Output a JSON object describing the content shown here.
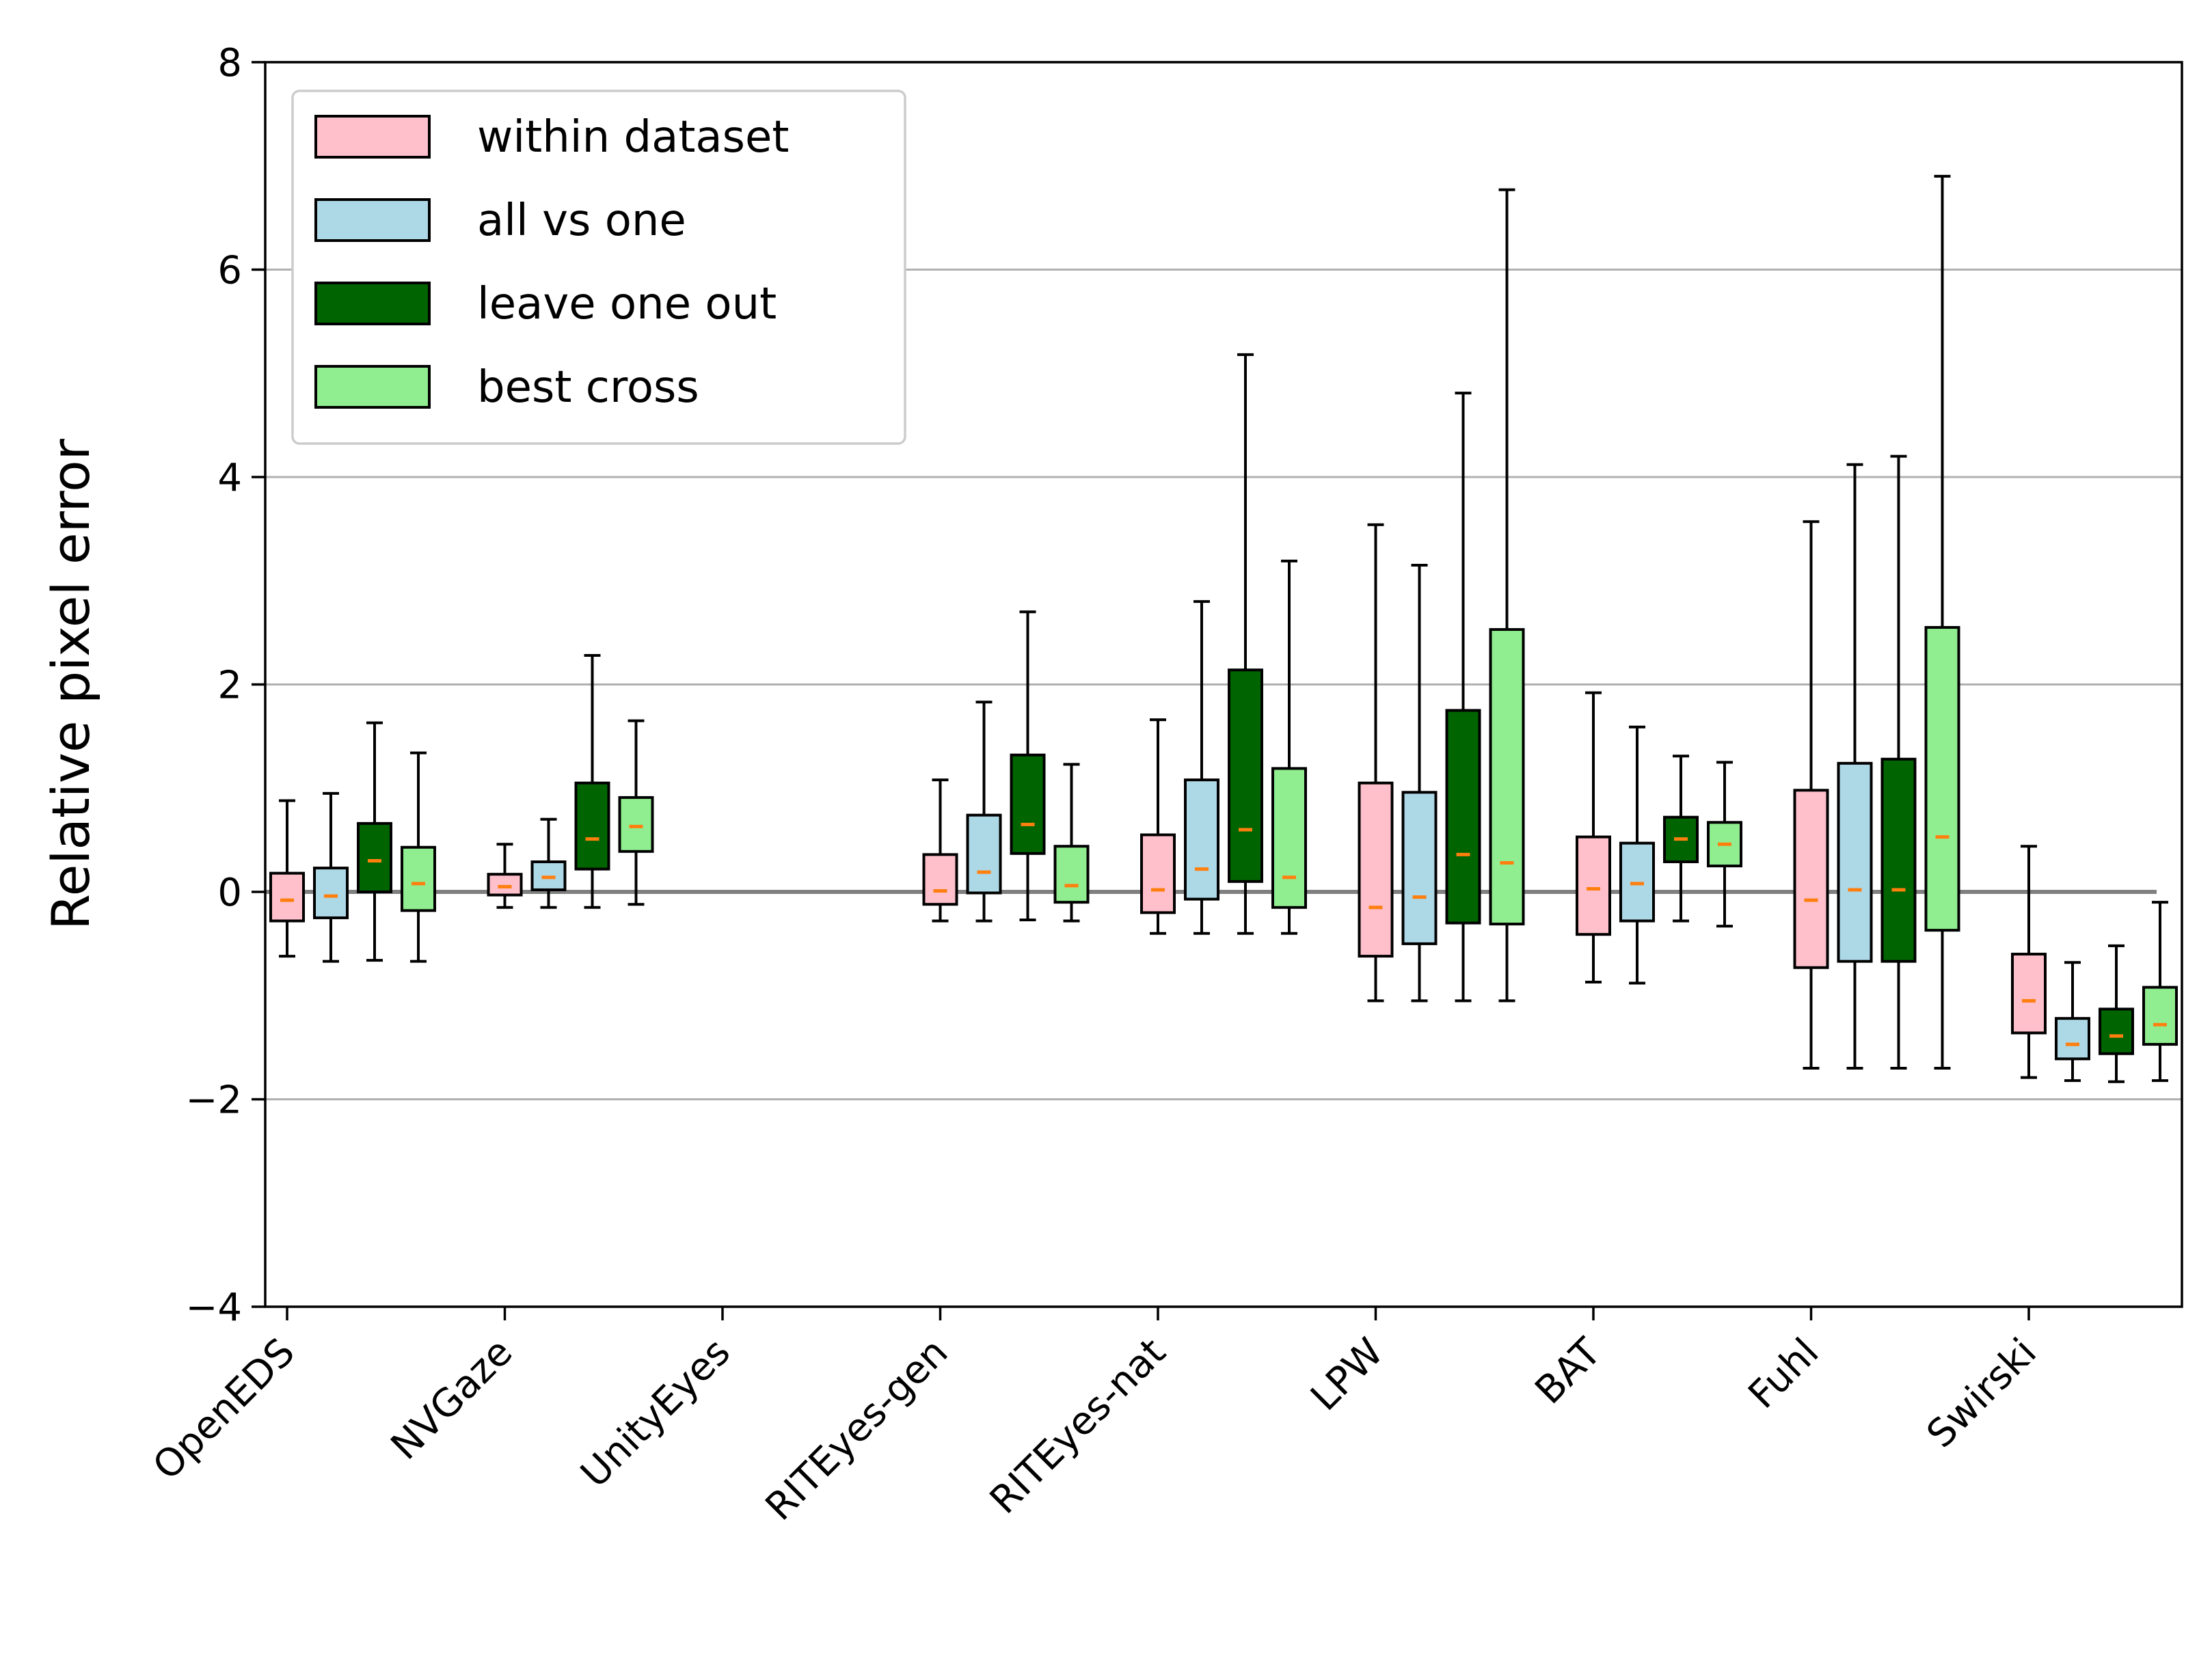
{
  "chart_data": {
    "type": "boxplot",
    "title": "",
    "xlabel": "",
    "ylabel": "Relative pixel error",
    "ylim": [
      -4,
      8
    ],
    "yticks": [
      -4,
      -2,
      0,
      2,
      4,
      6,
      8
    ],
    "ytick_labels": [
      "−4",
      "−2",
      "0",
      "2",
      "4",
      "6",
      "8"
    ],
    "grid": "horizontal",
    "reference_line": 0,
    "legend_position": "top-left",
    "categories": [
      "OpenEDS",
      "NVGaze",
      "UnityEyes",
      "RITEyes-gen",
      "RITEyes-nat",
      "LPW",
      "BAT",
      "Fuhl",
      "Swirski"
    ],
    "colors": {
      "median": "#ff7f0e",
      "edge": "#000000",
      "grid": "#b0b0b0",
      "zero_line": "#808080"
    },
    "series": [
      {
        "name": "within dataset",
        "color": "#ffc0cb",
        "boxes": [
          {
            "min": -0.62,
            "q1": -0.28,
            "median": -0.08,
            "q3": 0.18,
            "max": 0.88
          },
          {
            "min": -0.15,
            "q1": -0.03,
            "median": 0.05,
            "q3": 0.17,
            "max": 0.46
          },
          null,
          {
            "min": -0.28,
            "q1": -0.12,
            "median": 0.01,
            "q3": 0.36,
            "max": 1.08
          },
          {
            "min": -0.4,
            "q1": -0.2,
            "median": 0.02,
            "q3": 0.55,
            "max": 1.66
          },
          {
            "min": -1.05,
            "q1": -0.62,
            "median": -0.15,
            "q3": 1.05,
            "max": 3.54
          },
          {
            "min": -0.87,
            "q1": -0.41,
            "median": 0.03,
            "q3": 0.53,
            "max": 1.92
          },
          {
            "min": -1.7,
            "q1": -0.73,
            "median": -0.08,
            "q3": 0.98,
            "max": 3.57
          },
          {
            "min": -1.79,
            "q1": -1.36,
            "median": -1.05,
            "q3": -0.6,
            "max": 0.44
          }
        ]
      },
      {
        "name": "all vs one",
        "color": "#add8e6",
        "boxes": [
          {
            "min": -0.67,
            "q1": -0.25,
            "median": -0.04,
            "q3": 0.23,
            "max": 0.95
          },
          {
            "min": -0.15,
            "q1": 0.02,
            "median": 0.14,
            "q3": 0.29,
            "max": 0.7
          },
          null,
          {
            "min": -0.28,
            "q1": -0.01,
            "median": 0.19,
            "q3": 0.74,
            "max": 1.83
          },
          {
            "min": -0.4,
            "q1": -0.07,
            "median": 0.22,
            "q3": 1.08,
            "max": 2.8
          },
          {
            "min": -1.05,
            "q1": -0.5,
            "median": -0.05,
            "q3": 0.96,
            "max": 3.15
          },
          {
            "min": -0.88,
            "q1": -0.28,
            "median": 0.08,
            "q3": 0.47,
            "max": 1.59
          },
          {
            "min": -1.7,
            "q1": -0.67,
            "median": 0.02,
            "q3": 1.24,
            "max": 4.12
          },
          {
            "min": -1.82,
            "q1": -1.61,
            "median": -1.47,
            "q3": -1.22,
            "max": -0.68
          }
        ]
      },
      {
        "name": "leave one out",
        "color": "#006400",
        "boxes": [
          {
            "min": -0.66,
            "q1": 0.0,
            "median": 0.3,
            "q3": 0.66,
            "max": 1.63
          },
          {
            "min": -0.15,
            "q1": 0.22,
            "median": 0.51,
            "q3": 1.05,
            "max": 2.28
          },
          null,
          {
            "min": -0.27,
            "q1": 0.37,
            "median": 0.65,
            "q3": 1.32,
            "max": 2.7
          },
          {
            "min": -0.4,
            "q1": 0.1,
            "median": 0.6,
            "q3": 2.14,
            "max": 5.18
          },
          {
            "min": -1.05,
            "q1": -0.3,
            "median": 0.36,
            "q3": 1.75,
            "max": 4.81
          },
          {
            "min": -0.28,
            "q1": 0.29,
            "median": 0.51,
            "q3": 0.72,
            "max": 1.31
          },
          {
            "min": -1.7,
            "q1": -0.67,
            "median": 0.02,
            "q3": 1.28,
            "max": 4.2
          },
          {
            "min": -1.83,
            "q1": -1.56,
            "median": -1.39,
            "q3": -1.13,
            "max": -0.52
          }
        ]
      },
      {
        "name": "best cross",
        "color": "#90ee90",
        "boxes": [
          {
            "min": -0.67,
            "q1": -0.18,
            "median": 0.08,
            "q3": 0.43,
            "max": 1.34
          },
          {
            "min": -0.12,
            "q1": 0.39,
            "median": 0.63,
            "q3": 0.91,
            "max": 1.65
          },
          null,
          {
            "min": -0.28,
            "q1": -0.1,
            "median": 0.06,
            "q3": 0.44,
            "max": 1.23
          },
          {
            "min": -0.4,
            "q1": -0.15,
            "median": 0.14,
            "q3": 1.19,
            "max": 3.19
          },
          {
            "min": -1.05,
            "q1": -0.31,
            "median": 0.28,
            "q3": 2.53,
            "max": 6.77
          },
          {
            "min": -0.33,
            "q1": 0.25,
            "median": 0.46,
            "q3": 0.67,
            "max": 1.25
          },
          {
            "min": -1.7,
            "q1": -0.37,
            "median": 0.53,
            "q3": 2.55,
            "max": 6.9
          },
          {
            "min": -1.82,
            "q1": -1.47,
            "median": -1.28,
            "q3": -0.92,
            "max": -0.1
          }
        ]
      }
    ]
  }
}
